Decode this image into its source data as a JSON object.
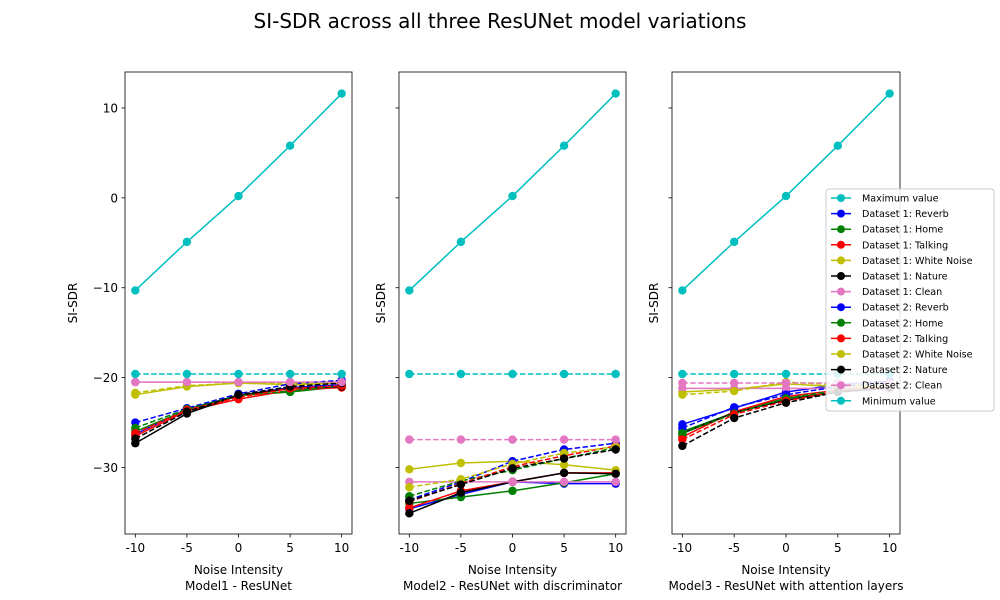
{
  "title": "SI-SDR across all three ResUNet model variations",
  "chart_data": [
    {
      "type": "line",
      "xlabel": "Noise Intensity",
      "subtitle": "Model1 - ResUNet",
      "ylabel": "SI-SDR",
      "x": [
        -10,
        -5,
        0,
        5,
        10
      ],
      "xticks": [
        "-10",
        "-5",
        "0",
        "5",
        "10"
      ],
      "xlim": [
        -11,
        11
      ],
      "ylim": [
        -37.4,
        14
      ],
      "yticks": [
        10,
        0,
        -10,
        -20,
        -30
      ],
      "ytick_labels": [
        "10",
        "0",
        "−10",
        "−20",
        "−30"
      ],
      "series": [
        {
          "name": "Maximum value",
          "color": "#00bfbf",
          "dash": false,
          "values": [
            -10.3,
            -4.9,
            0.2,
            5.8,
            11.6
          ]
        },
        {
          "name": "Dataset 1: Reverb",
          "color": "#0000ff",
          "dash": false,
          "values": [
            -26.3,
            -23.5,
            -22.0,
            -21.1,
            -20.8
          ]
        },
        {
          "name": "Dataset 1: Home",
          "color": "#008000",
          "dash": false,
          "values": [
            -26.0,
            -23.6,
            -22.0,
            -21.6,
            -21.0
          ]
        },
        {
          "name": "Dataset 1: Talking",
          "color": "#ff0000",
          "dash": false,
          "values": [
            -26.5,
            -23.7,
            -22.4,
            -21.4,
            -21.1
          ]
        },
        {
          "name": "Dataset 1: White Noise",
          "color": "#bfbf00",
          "dash": false,
          "values": [
            -21.9,
            -21.0,
            -20.6,
            -20.8,
            -20.6
          ]
        },
        {
          "name": "Dataset 1: Nature",
          "color": "#000000",
          "dash": false,
          "values": [
            -27.3,
            -24.0,
            -22.0,
            -21.2,
            -21.0
          ]
        },
        {
          "name": "Dataset 1: Clean",
          "color": "#e377c2",
          "dash": false,
          "values": [
            -20.5,
            -20.5,
            -20.5,
            -20.5,
            -20.5
          ]
        },
        {
          "name": "Dataset 2: Reverb",
          "color": "#0000ff",
          "dash": true,
          "values": [
            -25.0,
            -23.4,
            -21.8,
            -20.7,
            -20.3
          ]
        },
        {
          "name": "Dataset 2: Home",
          "color": "#008000",
          "dash": true,
          "values": [
            -25.6,
            -23.5,
            -22.0,
            -21.5,
            -20.9
          ]
        },
        {
          "name": "Dataset 2: Talking",
          "color": "#ff0000",
          "dash": true,
          "values": [
            -26.2,
            -23.6,
            -22.2,
            -21.2,
            -20.9
          ]
        },
        {
          "name": "Dataset 2: White Noise",
          "color": "#bfbf00",
          "dash": true,
          "values": [
            -21.7,
            -20.9,
            -20.6,
            -20.6,
            -20.5
          ]
        },
        {
          "name": "Dataset 2: Nature",
          "color": "#000000",
          "dash": true,
          "values": [
            -26.8,
            -23.8,
            -21.9,
            -21.0,
            -20.6
          ]
        },
        {
          "name": "Dataset 2: Clean",
          "color": "#e377c2",
          "dash": true,
          "values": [
            -20.5,
            -20.5,
            -20.5,
            -20.5,
            -20.5
          ]
        },
        {
          "name": "Minimum value",
          "color": "#00bfbf",
          "dash": true,
          "values": [
            -19.6,
            -19.6,
            -19.6,
            -19.6,
            -19.6
          ]
        }
      ]
    },
    {
      "type": "line",
      "xlabel": "Noise Intensity",
      "subtitle": "Model2 - ResUNet with discriminator",
      "ylabel": "SI-SDR",
      "x": [
        -10,
        -5,
        0,
        5,
        10
      ],
      "xticks": [
        "-10",
        "-5",
        "0",
        "5",
        "10"
      ],
      "xlim": [
        -11,
        11
      ],
      "ylim": [
        -37.4,
        14
      ],
      "yticks": [
        10,
        0,
        -10,
        -20,
        -30
      ],
      "series": [
        {
          "name": "Maximum value",
          "color": "#00bfbf",
          "dash": false,
          "values": [
            -10.3,
            -4.9,
            0.2,
            5.8,
            11.6
          ]
        },
        {
          "name": "Dataset 1: Reverb",
          "color": "#0000ff",
          "dash": false,
          "values": [
            -34.6,
            -33.0,
            -31.6,
            -31.8,
            -31.8
          ]
        },
        {
          "name": "Dataset 1: Home",
          "color": "#008000",
          "dash": false,
          "values": [
            -34.0,
            -33.3,
            -32.6,
            -31.7,
            -30.7
          ]
        },
        {
          "name": "Dataset 1: Talking",
          "color": "#ff0000",
          "dash": false,
          "values": [
            -34.5,
            -32.6,
            -31.6,
            -30.6,
            -30.6
          ]
        },
        {
          "name": "Dataset 1: White Noise",
          "color": "#bfbf00",
          "dash": false,
          "values": [
            -30.2,
            -29.5,
            -29.3,
            -29.7,
            -30.3
          ]
        },
        {
          "name": "Dataset 1: Nature",
          "color": "#000000",
          "dash": false,
          "values": [
            -35.1,
            -32.8,
            -31.6,
            -30.6,
            -30.7
          ]
        },
        {
          "name": "Dataset 1: Clean",
          "color": "#e377c2",
          "dash": false,
          "values": [
            -31.6,
            -31.6,
            -31.6,
            -31.6,
            -31.6
          ]
        },
        {
          "name": "Dataset 2: Reverb",
          "color": "#0000ff",
          "dash": true,
          "values": [
            -33.6,
            -31.6,
            -29.3,
            -28.0,
            -27.3
          ]
        },
        {
          "name": "Dataset 2: Home",
          "color": "#008000",
          "dash": true,
          "values": [
            -33.2,
            -31.5,
            -30.3,
            -29.0,
            -27.8
          ]
        },
        {
          "name": "Dataset 2: Talking",
          "color": "#ff0000",
          "dash": true,
          "values": [
            -33.8,
            -31.8,
            -29.9,
            -28.7,
            -27.6
          ]
        },
        {
          "name": "Dataset 2: White Noise",
          "color": "#bfbf00",
          "dash": true,
          "values": [
            -32.2,
            -31.3,
            -29.6,
            -28.4,
            -27.7
          ]
        },
        {
          "name": "Dataset 2: Nature",
          "color": "#000000",
          "dash": true,
          "values": [
            -33.7,
            -31.9,
            -30.1,
            -29.0,
            -28.0
          ]
        },
        {
          "name": "Dataset 2: Clean",
          "color": "#e377c2",
          "dash": true,
          "values": [
            -26.9,
            -26.9,
            -26.9,
            -26.9,
            -26.9
          ]
        },
        {
          "name": "Minimum value",
          "color": "#00bfbf",
          "dash": true,
          "values": [
            -19.6,
            -19.6,
            -19.6,
            -19.6,
            -19.6
          ]
        }
      ]
    },
    {
      "type": "line",
      "xlabel": "Noise Intensity",
      "subtitle": "Model3 - ResUNet with attention layers",
      "ylabel": "SI-SDR",
      "x": [
        -10,
        -5,
        0,
        5,
        10
      ],
      "xticks": [
        "-10",
        "-5",
        "0",
        "5",
        "10"
      ],
      "xlim": [
        -11,
        11
      ],
      "ylim": [
        -37.4,
        14
      ],
      "yticks": [
        10,
        0,
        -10,
        -20,
        -30
      ],
      "series": [
        {
          "name": "Maximum value",
          "color": "#00bfbf",
          "dash": false,
          "values": [
            -10.3,
            -4.9,
            0.2,
            5.8,
            11.6
          ]
        },
        {
          "name": "Dataset 1: Reverb",
          "color": "#0000ff",
          "dash": false,
          "values": [
            -25.2,
            -23.4,
            -21.6,
            -20.8,
            -20.4
          ]
        },
        {
          "name": "Dataset 1: Home",
          "color": "#008000",
          "dash": false,
          "values": [
            -26.0,
            -23.9,
            -22.3,
            -21.6,
            -21.0
          ]
        },
        {
          "name": "Dataset 1: Talking",
          "color": "#ff0000",
          "dash": false,
          "values": [
            -26.6,
            -23.8,
            -22.1,
            -21.4,
            -21.1
          ]
        },
        {
          "name": "Dataset 1: White Noise",
          "color": "#bfbf00",
          "dash": false,
          "values": [
            -21.6,
            -21.3,
            -20.7,
            -21.0,
            -21.0
          ]
        },
        {
          "name": "Dataset 1: Nature",
          "color": "#000000",
          "dash": false,
          "values": [
            -26.2,
            -23.9,
            -22.5,
            -21.6,
            -21.2
          ]
        },
        {
          "name": "Dataset 1: Clean",
          "color": "#e377c2",
          "dash": false,
          "values": [
            -21.2,
            -21.2,
            -21.2,
            -21.2,
            -21.2
          ]
        },
        {
          "name": "Dataset 2: Reverb",
          "color": "#0000ff",
          "dash": true,
          "values": [
            -25.6,
            -23.3,
            -21.9,
            -21.0,
            -20.6
          ]
        },
        {
          "name": "Dataset 2: Home",
          "color": "#008000",
          "dash": true,
          "values": [
            -26.2,
            -24.0,
            -22.3,
            -21.4,
            -21.0
          ]
        },
        {
          "name": "Dataset 2: Talking",
          "color": "#ff0000",
          "dash": true,
          "values": [
            -26.9,
            -24.1,
            -22.6,
            -21.5,
            -21.0
          ]
        },
        {
          "name": "Dataset 2: White Noise",
          "color": "#bfbf00",
          "dash": true,
          "values": [
            -21.9,
            -21.5,
            -20.5,
            -20.8,
            -20.9
          ]
        },
        {
          "name": "Dataset 2: Nature",
          "color": "#000000",
          "dash": true,
          "values": [
            -27.6,
            -24.5,
            -22.8,
            -21.6,
            -21.1
          ]
        },
        {
          "name": "Dataset 2: Clean",
          "color": "#e377c2",
          "dash": true,
          "values": [
            -20.6,
            -20.6,
            -20.6,
            -20.6,
            -20.6
          ]
        },
        {
          "name": "Minimum value",
          "color": "#00bfbf",
          "dash": true,
          "values": [
            -19.6,
            -19.6,
            -19.6,
            -19.6,
            -19.6
          ]
        }
      ]
    }
  ],
  "legend": {
    "placement": "right",
    "entries": [
      {
        "name": "Maximum value",
        "color": "#00bfbf"
      },
      {
        "name": "Dataset 1: Reverb",
        "color": "#0000ff"
      },
      {
        "name": "Dataset 1: Home",
        "color": "#008000"
      },
      {
        "name": "Dataset 1: Talking",
        "color": "#ff0000"
      },
      {
        "name": "Dataset 1: White Noise",
        "color": "#bfbf00"
      },
      {
        "name": "Dataset 1: Nature",
        "color": "#000000"
      },
      {
        "name": "Dataset 1: Clean",
        "color": "#e377c2"
      },
      {
        "name": "Dataset 2: Reverb",
        "color": "#0000ff"
      },
      {
        "name": "Dataset 2: Home",
        "color": "#008000"
      },
      {
        "name": "Dataset 2: Talking",
        "color": "#ff0000"
      },
      {
        "name": "Dataset 2: White Noise",
        "color": "#bfbf00"
      },
      {
        "name": "Dataset 2: Nature",
        "color": "#000000"
      },
      {
        "name": "Dataset 2: Clean",
        "color": "#e377c2"
      },
      {
        "name": "Minimum value",
        "color": "#00bfbf"
      }
    ]
  }
}
